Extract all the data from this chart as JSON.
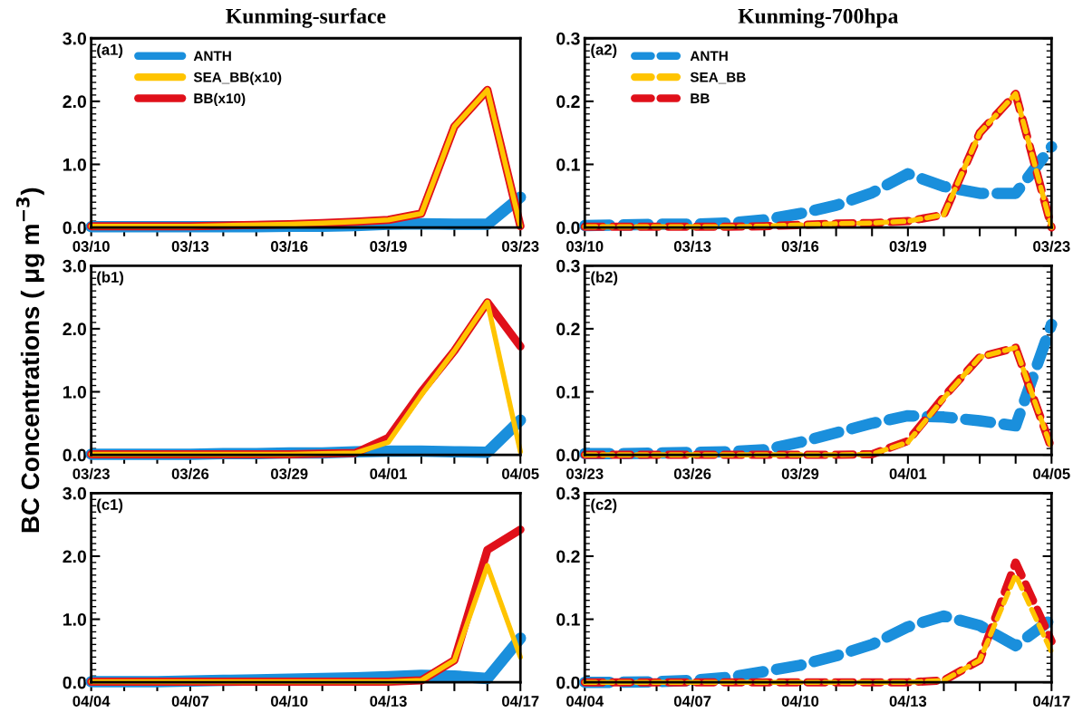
{
  "chart_data": [
    {
      "type": "line",
      "title": "Kunming-surface",
      "annotations": [
        "(a1)"
      ],
      "line_style": "solid",
      "legend": "top left",
      "grid": false,
      "categories": [
        "03/10",
        null,
        null,
        "03/13",
        null,
        null,
        "03/16",
        null,
        null,
        "03/19",
        null,
        null,
        null,
        "03/23"
      ],
      "ylim": [
        0,
        3
      ],
      "yticks": [
        {
          "value": 0,
          "label": "0.0"
        },
        {
          "value": 1,
          "label": "1.0"
        },
        {
          "value": 2,
          "label": "2.0"
        },
        {
          "value": 3,
          "label": "3.0"
        }
      ],
      "series": [
        {
          "name": "ANTH",
          "color": "#1a8fdc",
          "values": [
            0.01,
            0.01,
            0.01,
            0.01,
            0.01,
            0.01,
            0.02,
            0.02,
            0.03,
            0.05,
            0.06,
            0.05,
            0.05,
            0.48
          ]
        },
        {
          "name": "BB(x10)",
          "color": "#e0101a",
          "values": [
            0.02,
            0.02,
            0.02,
            0.02,
            0.03,
            0.04,
            0.05,
            0.07,
            0.09,
            0.12,
            0.22,
            1.6,
            2.18,
            0.02
          ]
        },
        {
          "name": "SEA_BB(x10)",
          "color": "#ffc400",
          "values": [
            0.02,
            0.02,
            0.02,
            0.02,
            0.03,
            0.04,
            0.05,
            0.07,
            0.09,
            0.12,
            0.22,
            1.6,
            2.18,
            0.02
          ]
        }
      ]
    },
    {
      "type": "line",
      "title": "Kunming-700hpa",
      "annotations": [
        "(a2)"
      ],
      "line_style": "dashed",
      "legend": "top left",
      "grid": false,
      "categories": [
        "03/10",
        null,
        null,
        "03/13",
        null,
        null,
        "03/16",
        null,
        null,
        "03/19",
        null,
        null,
        null,
        "03/23"
      ],
      "ylim": [
        0,
        0.3
      ],
      "yticks": [
        {
          "value": 0,
          "label": "0.0"
        },
        0.1,
        0.2,
        0.3
      ],
      "series": [
        {
          "name": "ANTH",
          "color": "#1a8fdc",
          "values": [
            0.003,
            0.004,
            0.005,
            0.005,
            0.007,
            0.012,
            0.022,
            0.035,
            0.055,
            0.085,
            0.065,
            0.054,
            0.054,
            0.128
          ]
        },
        {
          "name": "BB",
          "color": "#e0101a",
          "values": [
            0.001,
            0.001,
            0.001,
            0.001,
            0.001,
            0.002,
            0.004,
            0.006,
            0.007,
            0.01,
            0.02,
            0.15,
            0.212,
            0.0
          ]
        },
        {
          "name": "SEA_BB",
          "color": "#ffc400",
          "values": [
            0.001,
            0.001,
            0.001,
            0.001,
            0.001,
            0.002,
            0.004,
            0.006,
            0.007,
            0.01,
            0.02,
            0.15,
            0.212,
            0.0
          ]
        }
      ]
    },
    {
      "type": "line",
      "ylabel": "BC Concentrations ( μg m$^{−3}$)",
      "annotations": [
        "(b1)"
      ],
      "line_style": "solid",
      "grid": false,
      "categories": [
        "03/23",
        null,
        null,
        "03/26",
        null,
        null,
        "03/29",
        null,
        null,
        "04/01",
        null,
        null,
        null,
        "04/05"
      ],
      "ylim": [
        0,
        3
      ],
      "yticks": [
        {
          "value": 0,
          "label": "0.0"
        },
        {
          "value": 1,
          "label": "1.0"
        },
        {
          "value": 2,
          "label": "2.0"
        },
        {
          "value": 3,
          "label": "3.0"
        }
      ],
      "series": [
        {
          "color": "#1a8fdc",
          "values": [
            0.01,
            0.01,
            0.01,
            0.01,
            0.02,
            0.02,
            0.03,
            0.03,
            0.05,
            0.06,
            0.06,
            0.05,
            0.04,
            0.55
          ]
        },
        {
          "color": "#e0101a",
          "values": [
            0.01,
            0.01,
            0.01,
            0.01,
            0.01,
            0.01,
            0.01,
            0.02,
            0.03,
            0.27,
            1.0,
            1.65,
            2.42,
            1.72
          ]
        },
        {
          "color": "#ffc400",
          "values": [
            0.01,
            0.01,
            0.01,
            0.01,
            0.01,
            0.01,
            0.01,
            0.02,
            0.03,
            0.2,
            0.95,
            1.65,
            2.42,
            0.05
          ]
        }
      ]
    },
    {
      "type": "line",
      "annotations": [
        "(b2)"
      ],
      "line_style": "dashed",
      "grid": false,
      "categories": [
        "03/23",
        null,
        null,
        "03/26",
        null,
        null,
        "03/29",
        null,
        null,
        "04/01",
        null,
        null,
        null,
        "04/05"
      ],
      "ylim": [
        0,
        0.3
      ],
      "yticks": [
        {
          "value": 0,
          "label": "0.0"
        },
        0.1,
        0.2,
        0.3
      ],
      "series": [
        {
          "color": "#1a8fdc",
          "values": [
            0.002,
            0.002,
            0.003,
            0.004,
            0.005,
            0.008,
            0.02,
            0.035,
            0.05,
            0.062,
            0.06,
            0.054,
            0.046,
            0.207
          ]
        },
        {
          "color": "#e0101a",
          "values": [
            0.0,
            0.0,
            0.0,
            0.0,
            0.0,
            0.0,
            0.0,
            0.0,
            0.001,
            0.022,
            0.092,
            0.155,
            0.17,
            0.01
          ]
        },
        {
          "color": "#ffc400",
          "values": [
            0.0,
            0.0,
            0.0,
            0.0,
            0.0,
            0.0,
            0.0,
            0.0,
            0.001,
            0.02,
            0.09,
            0.155,
            0.17,
            0.01
          ]
        }
      ]
    },
    {
      "type": "line",
      "annotations": [
        "(c1)"
      ],
      "line_style": "solid",
      "grid": false,
      "categories": [
        "04/04",
        null,
        null,
        "04/07",
        null,
        null,
        "04/10",
        null,
        null,
        "04/13",
        null,
        null,
        null,
        "04/17"
      ],
      "ylim": [
        0,
        3
      ],
      "yticks": [
        {
          "value": 0,
          "label": "0.0"
        },
        {
          "value": 1,
          "label": "1.0"
        },
        {
          "value": 2,
          "label": "2.0"
        },
        {
          "value": 3,
          "label": "3.0"
        }
      ],
      "series": [
        {
          "color": "#1a8fdc",
          "values": [
            0.01,
            0.01,
            0.01,
            0.02,
            0.03,
            0.04,
            0.05,
            0.06,
            0.07,
            0.09,
            0.11,
            0.1,
            0.06,
            0.7
          ]
        },
        {
          "color": "#e0101a",
          "values": [
            0.01,
            0.01,
            0.01,
            0.01,
            0.01,
            0.01,
            0.01,
            0.01,
            0.01,
            0.01,
            0.03,
            0.35,
            2.1,
            2.42
          ]
        },
        {
          "color": "#ffc400",
          "values": [
            0.01,
            0.01,
            0.01,
            0.01,
            0.01,
            0.01,
            0.01,
            0.01,
            0.01,
            0.01,
            0.03,
            0.35,
            1.85,
            0.4
          ]
        }
      ]
    },
    {
      "type": "line",
      "annotations": [
        "(c2)"
      ],
      "line_style": "dashed",
      "grid": false,
      "categories": [
        "04/04",
        null,
        null,
        "04/07",
        null,
        null,
        "04/10",
        null,
        null,
        "04/13",
        null,
        null,
        null,
        "04/17"
      ],
      "ylim": [
        0,
        0.3
      ],
      "yticks": [
        {
          "value": 0,
          "label": "0.0"
        },
        0.1,
        0.2,
        0.3
      ],
      "series": [
        {
          "color": "#1a8fdc",
          "values": [
            0.0,
            0.0,
            0.001,
            0.003,
            0.008,
            0.017,
            0.027,
            0.042,
            0.06,
            0.088,
            0.105,
            0.09,
            0.058,
            0.1
          ]
        },
        {
          "color": "#e0101a",
          "values": [
            0.0,
            0.0,
            0.0,
            0.0,
            0.0,
            0.0,
            0.0,
            0.0,
            0.0,
            0.0,
            0.003,
            0.035,
            0.19,
            0.065
          ]
        },
        {
          "color": "#ffc400",
          "values": [
            0.0,
            0.0,
            0.0,
            0.0,
            0.0,
            0.0,
            0.0,
            0.0,
            0.0,
            0.0,
            0.003,
            0.035,
            0.17,
            0.048
          ]
        }
      ]
    }
  ]
}
